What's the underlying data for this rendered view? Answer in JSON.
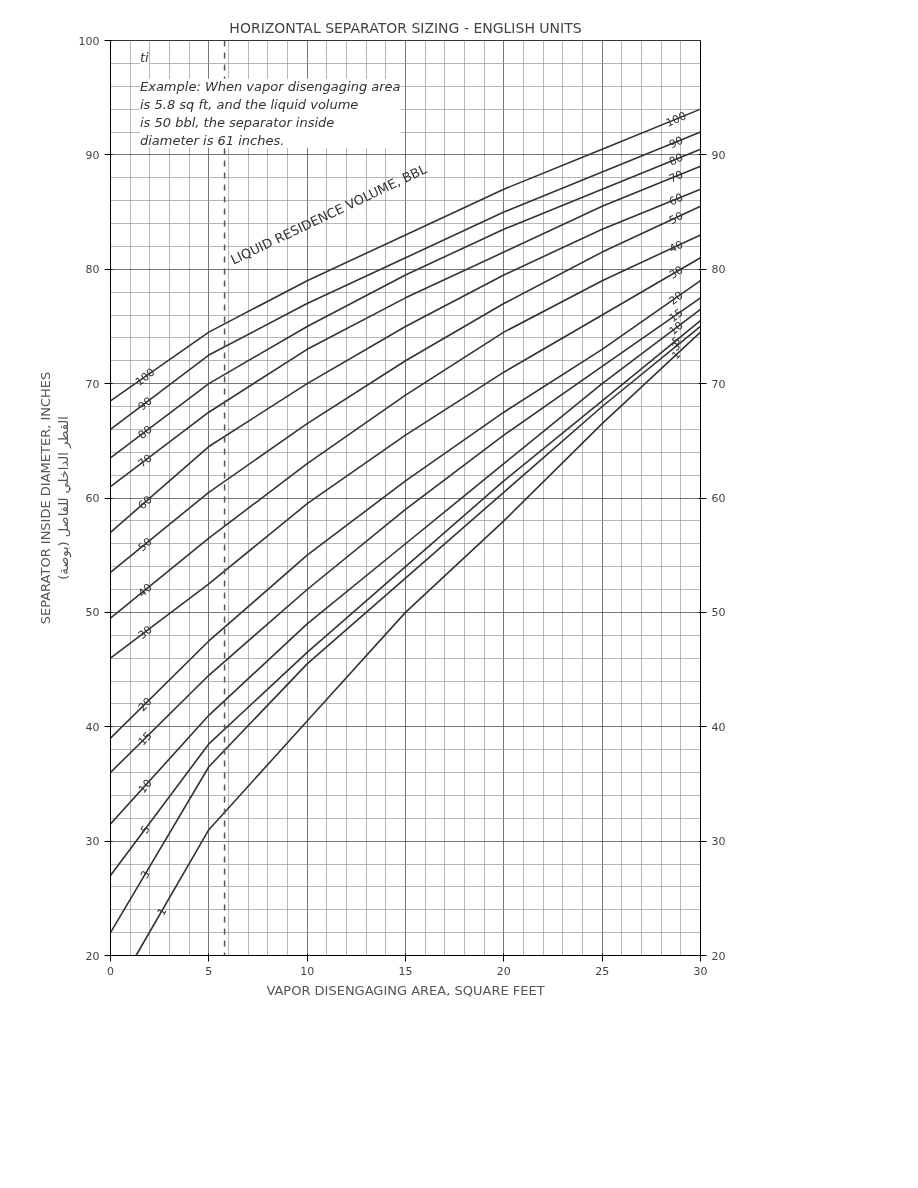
{
  "chart_data": {
    "type": "line",
    "title": "HORIZONTAL SEPARATOR SIZING - ENGLISH UNITS",
    "xlabel": "VAPOR DISENGAGING AREA, SQUARE FEET",
    "ylabel": "SEPARATOR INSIDE DIAMETER, INCHES\nالقطر الداخلي للفاصل (بوصة)",
    "x": [
      0,
      5,
      10,
      15,
      20,
      25,
      30
    ],
    "series": [
      {
        "name": "100",
        "color": "#333333",
        "values": [
          68.5,
          74.5,
          79,
          83,
          87,
          90.5,
          94
        ]
      },
      {
        "name": "90",
        "color": "#333333",
        "values": [
          66,
          72.5,
          77,
          81,
          85,
          88.5,
          92
        ]
      },
      {
        "name": "80",
        "color": "#333333",
        "values": [
          63.5,
          70,
          75,
          79.5,
          83.5,
          87,
          90.5
        ]
      },
      {
        "name": "70",
        "color": "#333333",
        "values": [
          61,
          67.5,
          73,
          77.5,
          81.5,
          85.5,
          89
        ]
      },
      {
        "name": "60",
        "color": "#333333",
        "values": [
          57,
          64.5,
          70,
          75,
          79.5,
          83.5,
          87
        ]
      },
      {
        "name": "50",
        "color": "#333333",
        "values": [
          53.5,
          60.5,
          66.5,
          72,
          77,
          81.5,
          85.5
        ]
      },
      {
        "name": "40",
        "color": "#333333",
        "values": [
          49.5,
          56.5,
          63,
          69,
          74.5,
          79,
          83
        ]
      },
      {
        "name": "30",
        "color": "#333333",
        "values": [
          46,
          52.5,
          59.5,
          65.5,
          71,
          76,
          81
        ]
      },
      {
        "name": "20",
        "color": "#333333",
        "values": [
          39,
          47.5,
          55,
          61.5,
          67.5,
          73,
          79
        ]
      },
      {
        "name": "15",
        "color": "#333333",
        "values": [
          36,
          44.5,
          52,
          59,
          65.5,
          71.5,
          77.5
        ]
      },
      {
        "name": "10",
        "color": "#333333",
        "values": [
          31.5,
          41,
          49,
          56,
          63,
          70,
          76.5
        ]
      },
      {
        "name": "5",
        "color": "#333333",
        "values": [
          27,
          38.5,
          46.5,
          54,
          61.5,
          68.5,
          75.5
        ]
      },
      {
        "name": "3",
        "color": "#333333",
        "values": [
          22,
          36.5,
          45.5,
          53,
          60.5,
          68,
          75
        ]
      },
      {
        "name": "1",
        "color": "#333333",
        "x": [
          1.3,
          5,
          10,
          15,
          20,
          25,
          30
        ],
        "values": [
          20,
          31,
          40.5,
          50,
          58,
          66.5,
          74.5
        ]
      }
    ],
    "xlim": [
      0,
      30
    ],
    "xticks": [
      0,
      5,
      10,
      15,
      20,
      25,
      30
    ],
    "ylim": [
      20,
      100
    ],
    "yticks": [
      20,
      30,
      40,
      50,
      60,
      70,
      80,
      90,
      100
    ],
    "y2lim": [
      20,
      100
    ],
    "y2ticks": [
      20,
      30,
      40,
      50,
      60,
      70,
      80,
      90
    ],
    "grid": true,
    "line_style": "solid",
    "ref_lines": [
      {
        "axis": "x",
        "value": 5.8,
        "line_style": "dashed",
        "color": "#555555"
      }
    ],
    "annotations": [
      "ti",
      "Example: When vapor disengaging area is 5.8 sq ft, and the liquid volume is 50 bbl, the separator inside diameter is 61 inches.",
      "LIQUID RESIDENCE VOLUME, BBL"
    ]
  }
}
